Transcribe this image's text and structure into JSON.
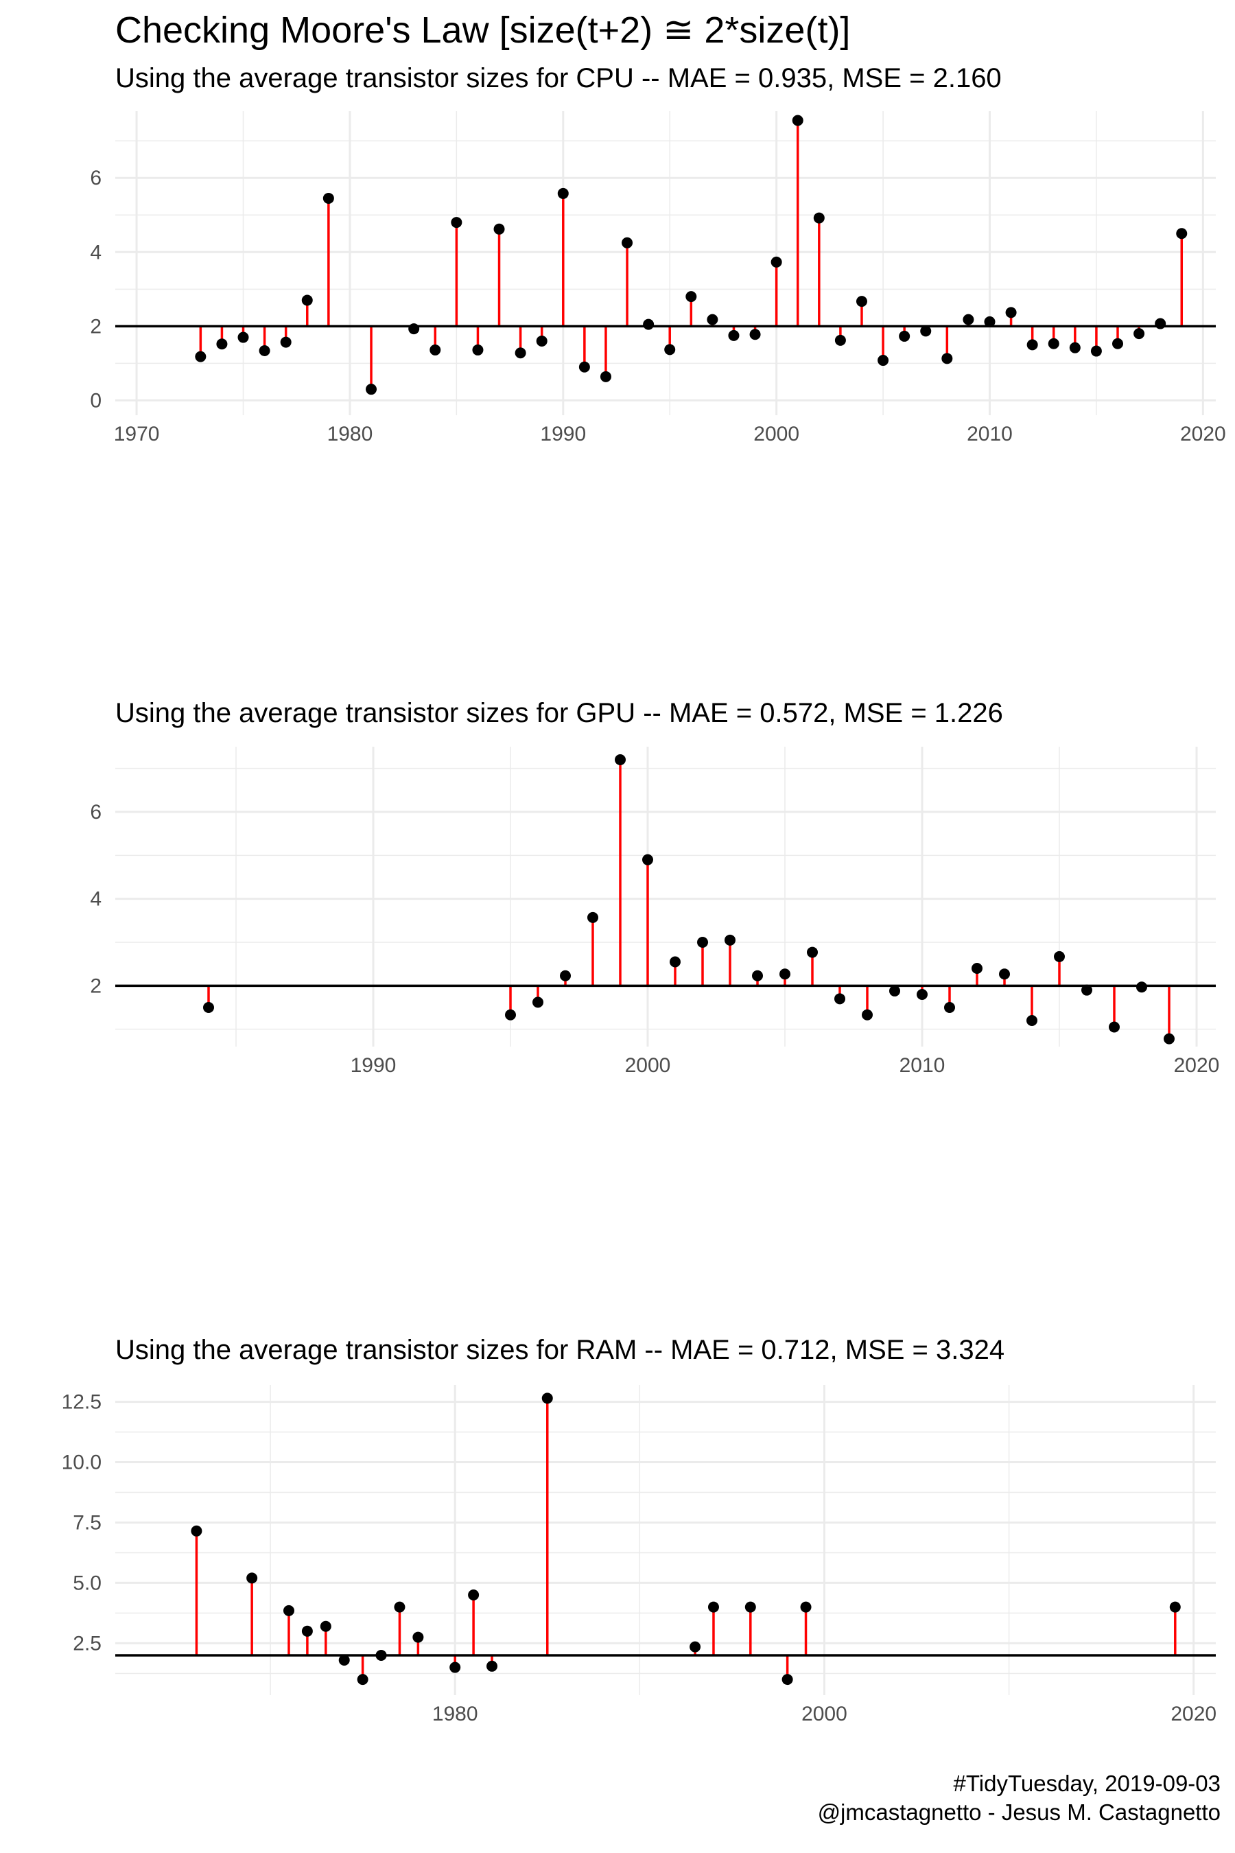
{
  "title": "Checking Moore's Law [size(t+2) ≅ 2*size(t)]",
  "caption": {
    "line1": "#TidyTuesday, 2019-09-03",
    "line2": "@jmcastagnetto - Jesus M. Castagnetto"
  },
  "colors": {
    "stem": "#ff0000",
    "point": "#000000",
    "reference": "#000000",
    "grid": "#ebebeb",
    "tick_text": "#4d4d4d"
  },
  "chart_data": [
    {
      "type": "scatter",
      "subtitle": "Using the average transistor sizes for CPU -- MAE = 0.935, MSE = 2.160",
      "reference_y": 2,
      "xlim": [
        1969,
        2020.6
      ],
      "ylim": [
        -0.4,
        7.8
      ],
      "x_ticks": [
        1970,
        1980,
        1990,
        2000,
        2010,
        2020
      ],
      "x_tick_labels": [
        "1970",
        "1980",
        "1990",
        "2000",
        "2010",
        "2020"
      ],
      "y_ticks": [
        0,
        2,
        4,
        6
      ],
      "y_tick_labels": [
        "0",
        "2",
        "4",
        "6"
      ],
      "x": [
        1973,
        1974,
        1975,
        1976,
        1977,
        1978,
        1979,
        1981,
        1983,
        1984,
        1985,
        1986,
        1987,
        1988,
        1989,
        1990,
        1991,
        1992,
        1993,
        1994,
        1995,
        1996,
        1997,
        1998,
        1999,
        2000,
        2001,
        2002,
        2003,
        2004,
        2005,
        2006,
        2007,
        2008,
        2009,
        2010,
        2011,
        2012,
        2013,
        2014,
        2015,
        2016,
        2017,
        2018,
        2019
      ],
      "y": [
        1.18,
        1.52,
        1.7,
        1.34,
        1.57,
        2.7,
        5.45,
        0.3,
        1.93,
        1.36,
        4.8,
        1.36,
        4.62,
        1.28,
        1.6,
        5.58,
        0.9,
        0.64,
        4.25,
        2.05,
        1.37,
        2.8,
        2.18,
        1.75,
        1.78,
        3.73,
        7.55,
        4.92,
        1.62,
        2.67,
        1.08,
        1.73,
        1.87,
        1.13,
        2.18,
        2.12,
        2.37,
        1.5,
        1.53,
        1.42,
        1.33,
        1.53,
        1.8,
        2.07,
        4.5
      ]
    },
    {
      "type": "scatter",
      "subtitle": "Using the average transistor sizes for GPU -- MAE = 0.572, MSE = 1.226",
      "reference_y": 2,
      "xlim": [
        1980.6,
        2020.7
      ],
      "ylim": [
        0.6,
        7.5
      ],
      "x_ticks": [
        1990,
        2000,
        2010,
        2020
      ],
      "x_tick_labels": [
        "1990",
        "2000",
        "2010",
        "2020"
      ],
      "y_ticks": [
        2,
        4,
        6
      ],
      "y_tick_labels": [
        "2",
        "4",
        "6"
      ],
      "x": [
        1984,
        1995,
        1996,
        1997,
        1998,
        1999,
        2000,
        2001,
        2002,
        2003,
        2004,
        2005,
        2006,
        2007,
        2008,
        2009,
        2010,
        2011,
        2012,
        2013,
        2014,
        2015,
        2016,
        2017,
        2018,
        2019
      ],
      "y": [
        1.5,
        1.33,
        1.62,
        2.23,
        3.57,
        7.2,
        4.9,
        2.55,
        3.0,
        3.05,
        2.23,
        2.27,
        2.77,
        1.7,
        1.33,
        1.88,
        1.8,
        1.5,
        2.4,
        2.27,
        1.2,
        2.67,
        1.9,
        1.05,
        1.97,
        0.78
      ]
    },
    {
      "type": "scatter",
      "subtitle": "Using the average transistor sizes for RAM -- MAE = 0.712, MSE = 3.324",
      "reference_y": 2,
      "xlim": [
        1961.6,
        2021.2
      ],
      "ylim": [
        0.35,
        13.2
      ],
      "x_ticks": [
        1980,
        2000,
        2020
      ],
      "x_tick_labels": [
        "1980",
        "2000",
        "2020"
      ],
      "y_ticks": [
        2.5,
        5.0,
        7.5,
        10.0,
        12.5
      ],
      "y_tick_labels": [
        "2.5",
        "5.0",
        "7.5",
        "10.0",
        "12.5"
      ],
      "x": [
        1966,
        1969,
        1971,
        1972,
        1973,
        1974,
        1975,
        1976,
        1977,
        1978,
        1980,
        1981,
        1982,
        1985,
        1993,
        1994,
        1996,
        1998,
        1999,
        2019
      ],
      "y": [
        7.15,
        5.2,
        3.85,
        3.0,
        3.2,
        1.8,
        1.0,
        2.0,
        4.0,
        2.75,
        1.5,
        4.5,
        1.55,
        12.65,
        2.35,
        4.0,
        4.0,
        1.0,
        4.0,
        4.0
      ]
    }
  ]
}
